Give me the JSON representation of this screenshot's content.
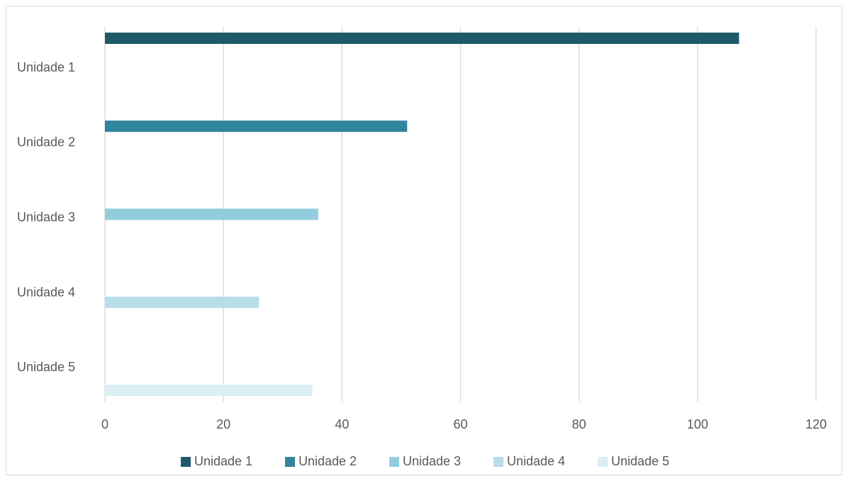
{
  "chart_data": {
    "type": "bar",
    "orientation": "horizontal",
    "title": "",
    "xlabel": "",
    "ylabel": "",
    "xlim": [
      0,
      120
    ],
    "x_ticks": [
      0,
      20,
      40,
      60,
      80,
      100,
      120
    ],
    "categories": [
      "Unidade 1",
      "Unidade 2",
      "Unidade 3",
      "Unidade 4",
      "Unidade 5"
    ],
    "series": [
      {
        "name": "Unidade 1",
        "color": "#1f5a6b",
        "values": [
          107,
          null,
          null,
          null,
          null
        ]
      },
      {
        "name": "Unidade 2",
        "color": "#31859c",
        "values": [
          null,
          51,
          null,
          null,
          null
        ]
      },
      {
        "name": "Unidade 3",
        "color": "#93cddd",
        "values": [
          null,
          null,
          36,
          null,
          null
        ]
      },
      {
        "name": "Unidade 4",
        "color": "#b7dee8",
        "values": [
          null,
          null,
          null,
          26,
          null
        ]
      },
      {
        "name": "Unidade 5",
        "color": "#daeef3",
        "values": [
          null,
          null,
          null,
          null,
          35
        ]
      }
    ],
    "grid": true,
    "legend_position": "bottom"
  }
}
